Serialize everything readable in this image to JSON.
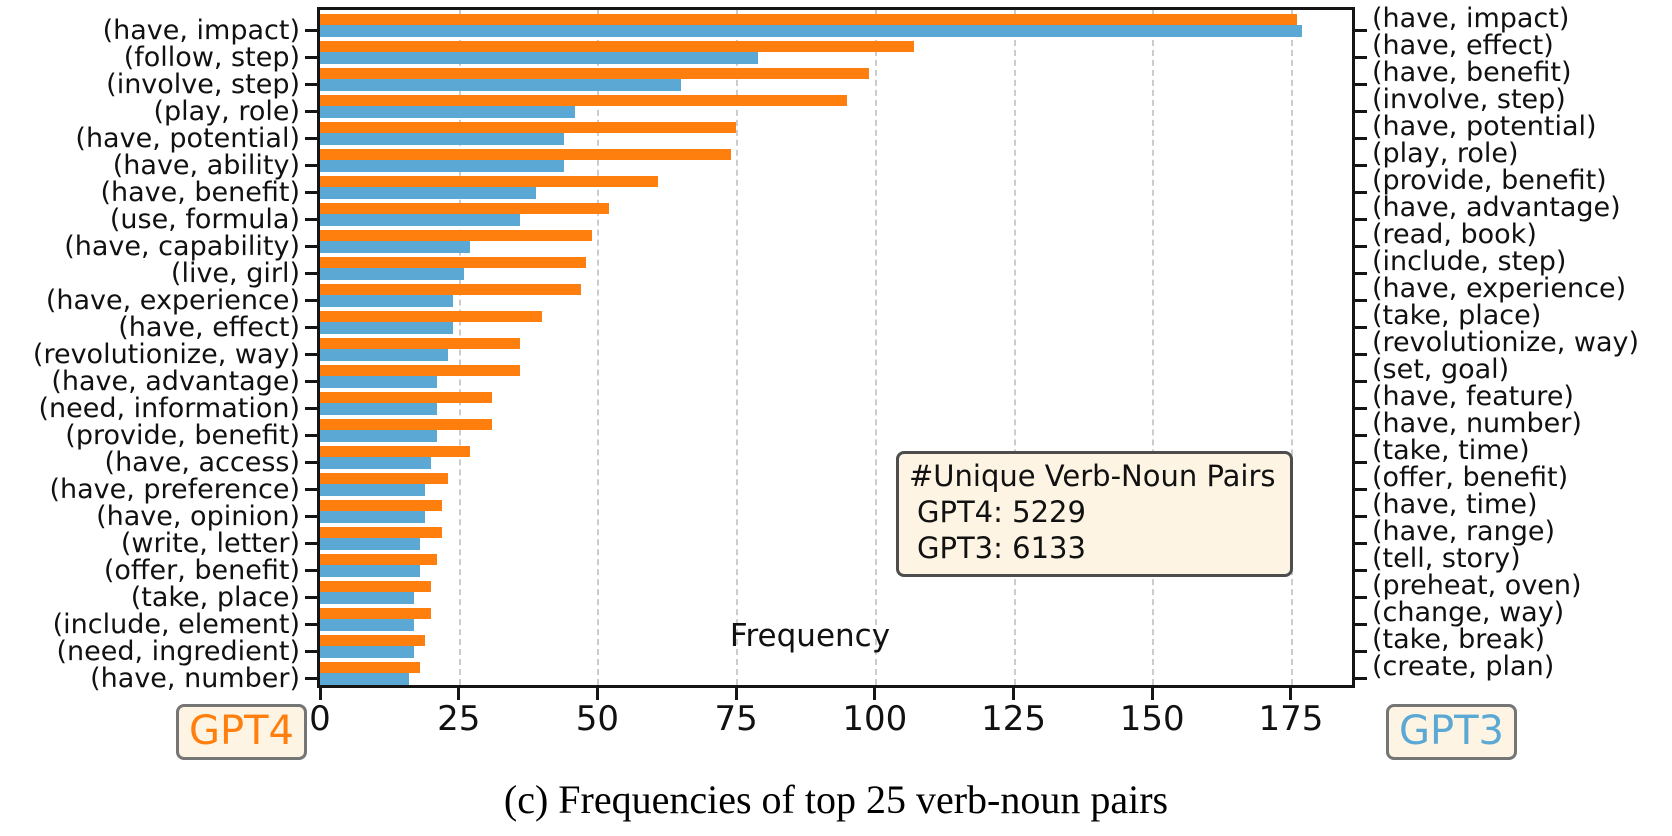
{
  "figure": {
    "caption": "(c) Frequencies of top 25 verb-noun pairs",
    "xlabel": "Frequency"
  },
  "colors": {
    "gpt4_orange": "#FF7F0E",
    "gpt3_blue": "#5BA8D5",
    "box_fill": "#FDF4E3",
    "annotation_border": "#4d4d4d",
    "legend_border": "#757575",
    "gridline": "#cccccc",
    "axis": "#151515"
  },
  "chart_data": {
    "type": "bar",
    "orientation": "horizontal-grouped",
    "xlabel": "Frequency",
    "xlim": [
      0,
      186
    ],
    "x_ticks": [
      0,
      25,
      50,
      75,
      100,
      125,
      150,
      175
    ],
    "grid": "vertical dashed gridlines at each x tick (25-175)",
    "legend_position": "GPT4 badge bottom-left, GPT3 badge bottom-right",
    "note": "Left axis labels list GPT4's top-25 verb-noun pairs (orange bars); right axis labels list GPT3's top-25 pairs (blue bars). Each row: orange bar on top, blue bar below.",
    "series": [
      {
        "name": "GPT4",
        "color": "#FF7F0E",
        "labels_side": "left",
        "pairs": [
          {
            "label": "(have, impact)",
            "value": 176
          },
          {
            "label": "(follow, step)",
            "value": 107
          },
          {
            "label": "(involve, step)",
            "value": 99
          },
          {
            "label": "(play, role)",
            "value": 95
          },
          {
            "label": "(have, potential)",
            "value": 75
          },
          {
            "label": "(have, ability)",
            "value": 74
          },
          {
            "label": "(have, benefit)",
            "value": 61
          },
          {
            "label": "(use, formula)",
            "value": 52
          },
          {
            "label": "(have, capability)",
            "value": 49
          },
          {
            "label": "(live, girl)",
            "value": 48
          },
          {
            "label": "(have, experience)",
            "value": 47
          },
          {
            "label": "(have, effect)",
            "value": 40
          },
          {
            "label": "(revolutionize, way)",
            "value": 36
          },
          {
            "label": "(have, advantage)",
            "value": 36
          },
          {
            "label": "(need, information)",
            "value": 31
          },
          {
            "label": "(provide, benefit)",
            "value": 31
          },
          {
            "label": "(have, access)",
            "value": 27
          },
          {
            "label": "(have, preference)",
            "value": 23
          },
          {
            "label": "(have, opinion)",
            "value": 22
          },
          {
            "label": "(write, letter)",
            "value": 22
          },
          {
            "label": "(offer, benefit)",
            "value": 21
          },
          {
            "label": "(take, place)",
            "value": 20
          },
          {
            "label": "(include, element)",
            "value": 20
          },
          {
            "label": "(need, ingredient)",
            "value": 19
          },
          {
            "label": "(have, number)",
            "value": 18
          }
        ]
      },
      {
        "name": "GPT3",
        "color": "#5BA8D5",
        "labels_side": "right",
        "pairs": [
          {
            "label": "(have, impact)",
            "value": 177
          },
          {
            "label": "(have, effect)",
            "value": 79
          },
          {
            "label": "(have, benefit)",
            "value": 65
          },
          {
            "label": "(involve, step)",
            "value": 46
          },
          {
            "label": "(have, potential)",
            "value": 44
          },
          {
            "label": "(play, role)",
            "value": 44
          },
          {
            "label": "(provide, benefit)",
            "value": 39
          },
          {
            "label": "(have, advantage)",
            "value": 36
          },
          {
            "label": "(read, book)",
            "value": 27
          },
          {
            "label": "(include, step)",
            "value": 26
          },
          {
            "label": "(have, experience)",
            "value": 24
          },
          {
            "label": "(take, place)",
            "value": 24
          },
          {
            "label": "(revolutionize, way)",
            "value": 23
          },
          {
            "label": "(set, goal)",
            "value": 21
          },
          {
            "label": "(have, feature)",
            "value": 21
          },
          {
            "label": "(have, number)",
            "value": 21
          },
          {
            "label": "(take, time)",
            "value": 20
          },
          {
            "label": "(offer, benefit)",
            "value": 19
          },
          {
            "label": "(have, time)",
            "value": 19
          },
          {
            "label": "(have, range)",
            "value": 18
          },
          {
            "label": "(tell, story)",
            "value": 18
          },
          {
            "label": "(preheat, oven)",
            "value": 17
          },
          {
            "label": "(change, way)",
            "value": 17
          },
          {
            "label": "(take, break)",
            "value": 17
          },
          {
            "label": "(create, plan)",
            "value": 16
          }
        ]
      }
    ],
    "annotation_box": {
      "title": "#Unique Verb-Noun Pairs",
      "lines": [
        "GPT4: 5229",
        "GPT3: 6133"
      ]
    }
  }
}
